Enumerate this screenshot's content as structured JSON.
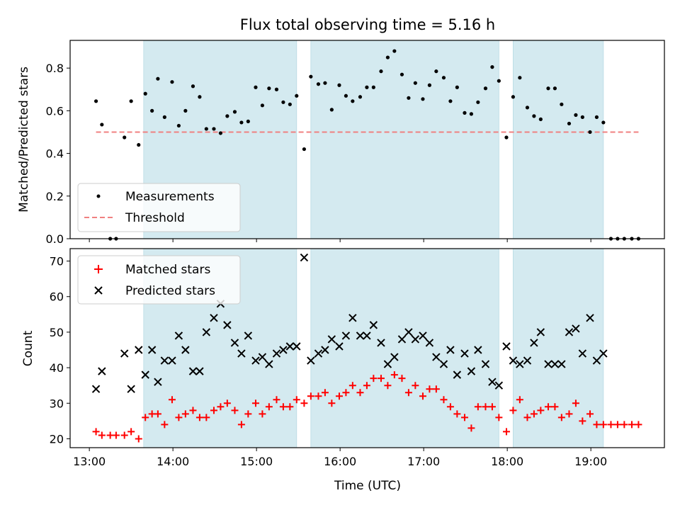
{
  "chart_data": [
    {
      "type": "scatter",
      "title": "Flux total observing time = 5.16 h",
      "xlabel": "",
      "ylabel": "Matched/Predicted stars",
      "xlim": [
        12.77,
        19.88
      ],
      "ylim": [
        0.0,
        0.93
      ],
      "yticks": [
        0.0,
        0.2,
        0.4,
        0.6,
        0.8
      ],
      "ytick_labels": [
        "0.0",
        "0.2",
        "0.4",
        "0.6",
        "0.8"
      ],
      "legend_position": "lower-left",
      "grid": false,
      "shaded_intervals_hours": [
        [
          13.65,
          15.48
        ],
        [
          15.65,
          17.9
        ],
        [
          18.07,
          19.15
        ]
      ],
      "shade_color": "#d4eaf0",
      "series": [
        {
          "name": "Measurements",
          "kind": "scatter",
          "marker": "dot",
          "color": "#000000",
          "x": [
            13.08,
            13.15,
            13.25,
            13.32,
            13.42,
            13.5,
            13.59,
            13.67,
            13.75,
            13.82,
            13.9,
            13.99,
            14.07,
            14.15,
            14.24,
            14.32,
            14.4,
            14.49,
            14.57,
            14.65,
            14.74,
            14.82,
            14.9,
            14.99,
            15.07,
            15.15,
            15.24,
            15.32,
            15.4,
            15.48,
            15.57,
            15.65,
            15.74,
            15.82,
            15.9,
            15.99,
            16.07,
            16.15,
            16.24,
            16.32,
            16.4,
            16.49,
            16.57,
            16.65,
            16.74,
            16.82,
            16.9,
            16.99,
            17.07,
            17.15,
            17.24,
            17.32,
            17.4,
            17.49,
            17.57,
            17.65,
            17.74,
            17.82,
            17.9,
            17.99,
            18.07,
            18.15,
            18.24,
            18.32,
            18.4,
            18.49,
            18.57,
            18.65,
            18.74,
            18.82,
            18.9,
            18.99,
            19.07,
            19.15,
            19.24,
            19.32,
            19.4,
            19.49,
            19.57
          ],
          "y": [
            0.645,
            0.535,
            0.0,
            0.0,
            0.475,
            0.645,
            0.44,
            0.68,
            0.6,
            0.75,
            0.57,
            0.735,
            0.53,
            0.6,
            0.715,
            0.665,
            0.515,
            0.515,
            0.495,
            0.575,
            0.595,
            0.545,
            0.55,
            0.71,
            0.625,
            0.705,
            0.7,
            0.64,
            0.63,
            0.67,
            0.42,
            0.76,
            0.725,
            0.73,
            0.605,
            0.72,
            0.67,
            0.645,
            0.665,
            0.71,
            0.71,
            0.785,
            0.85,
            0.88,
            0.77,
            0.66,
            0.73,
            0.655,
            0.72,
            0.785,
            0.755,
            0.645,
            0.71,
            0.59,
            0.585,
            0.64,
            0.705,
            0.805,
            0.74,
            0.475,
            0.665,
            0.755,
            0.615,
            0.575,
            0.56,
            0.705,
            0.705,
            0.63,
            0.54,
            0.58,
            0.57,
            0.5,
            0.57,
            0.545,
            0.0,
            0.0,
            0.0,
            0.0,
            0.0
          ]
        },
        {
          "name": "Threshold",
          "kind": "line",
          "style": "dashed",
          "color": "#f08080",
          "x": [
            13.08,
            19.57
          ],
          "y": [
            0.5,
            0.5
          ]
        }
      ]
    },
    {
      "type": "scatter",
      "title": "",
      "xlabel": "Time (UTC)",
      "ylabel": "Count",
      "xlim": [
        12.77,
        19.88
      ],
      "ylim": [
        17.5,
        73.5
      ],
      "xticks": [
        13,
        14,
        15,
        16,
        17,
        18,
        19
      ],
      "xtick_labels": [
        "13:00",
        "14:00",
        "15:00",
        "16:00",
        "17:00",
        "18:00",
        "19:00"
      ],
      "yticks": [
        20,
        30,
        40,
        50,
        60,
        70
      ],
      "ytick_labels": [
        "20",
        "30",
        "40",
        "50",
        "60",
        "70"
      ],
      "legend_position": "upper-left",
      "grid": false,
      "shaded_intervals_hours": [
        [
          13.65,
          15.48
        ],
        [
          15.65,
          17.9
        ],
        [
          18.07,
          19.15
        ]
      ],
      "shade_color": "#d4eaf0",
      "series": [
        {
          "name": "Matched stars",
          "kind": "scatter",
          "marker": "plus",
          "color": "#ff0000",
          "x": [
            13.08,
            13.15,
            13.25,
            13.32,
            13.42,
            13.5,
            13.59,
            13.67,
            13.75,
            13.82,
            13.9,
            13.99,
            14.07,
            14.15,
            14.24,
            14.32,
            14.4,
            14.49,
            14.57,
            14.65,
            14.74,
            14.82,
            14.9,
            14.99,
            15.07,
            15.15,
            15.24,
            15.32,
            15.4,
            15.48,
            15.57,
            15.65,
            15.74,
            15.82,
            15.9,
            15.99,
            16.07,
            16.15,
            16.24,
            16.32,
            16.4,
            16.49,
            16.57,
            16.65,
            16.74,
            16.82,
            16.9,
            16.99,
            17.07,
            17.15,
            17.24,
            17.32,
            17.4,
            17.49,
            17.57,
            17.65,
            17.74,
            17.82,
            17.9,
            17.99,
            18.07,
            18.15,
            18.24,
            18.32,
            18.4,
            18.49,
            18.57,
            18.65,
            18.74,
            18.82,
            18.9,
            18.99,
            19.07,
            19.15,
            19.24,
            19.32,
            19.4,
            19.49,
            19.57
          ],
          "y": [
            22,
            21,
            21,
            21,
            21,
            22,
            20,
            26,
            27,
            27,
            24,
            31,
            26,
            27,
            28,
            26,
            26,
            28,
            29,
            30,
            28,
            24,
            27,
            30,
            27,
            29,
            31,
            29,
            29,
            31,
            30,
            32,
            32,
            33,
            30,
            32,
            33,
            35,
            33,
            35,
            37,
            37,
            35,
            38,
            37,
            33,
            35,
            32,
            34,
            34,
            31,
            29,
            27,
            26,
            23,
            29,
            29,
            29,
            26,
            22,
            28,
            31,
            26,
            27,
            28,
            29,
            29,
            26,
            27,
            30,
            25,
            27,
            24,
            24,
            24,
            24,
            24,
            24,
            24
          ]
        },
        {
          "name": "Predicted stars",
          "kind": "scatter",
          "marker": "x",
          "color": "#000000",
          "x": [
            13.08,
            13.15,
            13.42,
            13.5,
            13.59,
            13.67,
            13.75,
            13.82,
            13.9,
            13.99,
            14.07,
            14.15,
            14.24,
            14.32,
            14.4,
            14.49,
            14.57,
            14.65,
            14.74,
            14.82,
            14.9,
            14.99,
            15.07,
            15.15,
            15.24,
            15.32,
            15.4,
            15.48,
            15.57,
            15.65,
            15.74,
            15.82,
            15.9,
            15.99,
            16.07,
            16.15,
            16.24,
            16.32,
            16.4,
            16.49,
            16.57,
            16.65,
            16.74,
            16.82,
            16.9,
            16.99,
            17.07,
            17.15,
            17.24,
            17.32,
            17.4,
            17.49,
            17.57,
            17.65,
            17.74,
            17.82,
            17.9,
            17.99,
            18.07,
            18.15,
            18.24,
            18.32,
            18.4,
            18.49,
            18.57,
            18.65,
            18.74,
            18.82,
            18.9,
            18.99,
            19.07,
            19.15
          ],
          "y": [
            34,
            39,
            44,
            34,
            45,
            38,
            45,
            36,
            42,
            42,
            49,
            45,
            39,
            39,
            50,
            54,
            58,
            52,
            47,
            44,
            49,
            42,
            43,
            41,
            44,
            45,
            46,
            46,
            71,
            42,
            44,
            45,
            48,
            46,
            49,
            54,
            49,
            49,
            52,
            47,
            41,
            43,
            48,
            50,
            48,
            49,
            47,
            43,
            41,
            45,
            38,
            44,
            39,
            45,
            41,
            36,
            35,
            46,
            42,
            41,
            42,
            47,
            50,
            41,
            41,
            41,
            50,
            51,
            44,
            54,
            42,
            44
          ]
        }
      ]
    }
  ]
}
